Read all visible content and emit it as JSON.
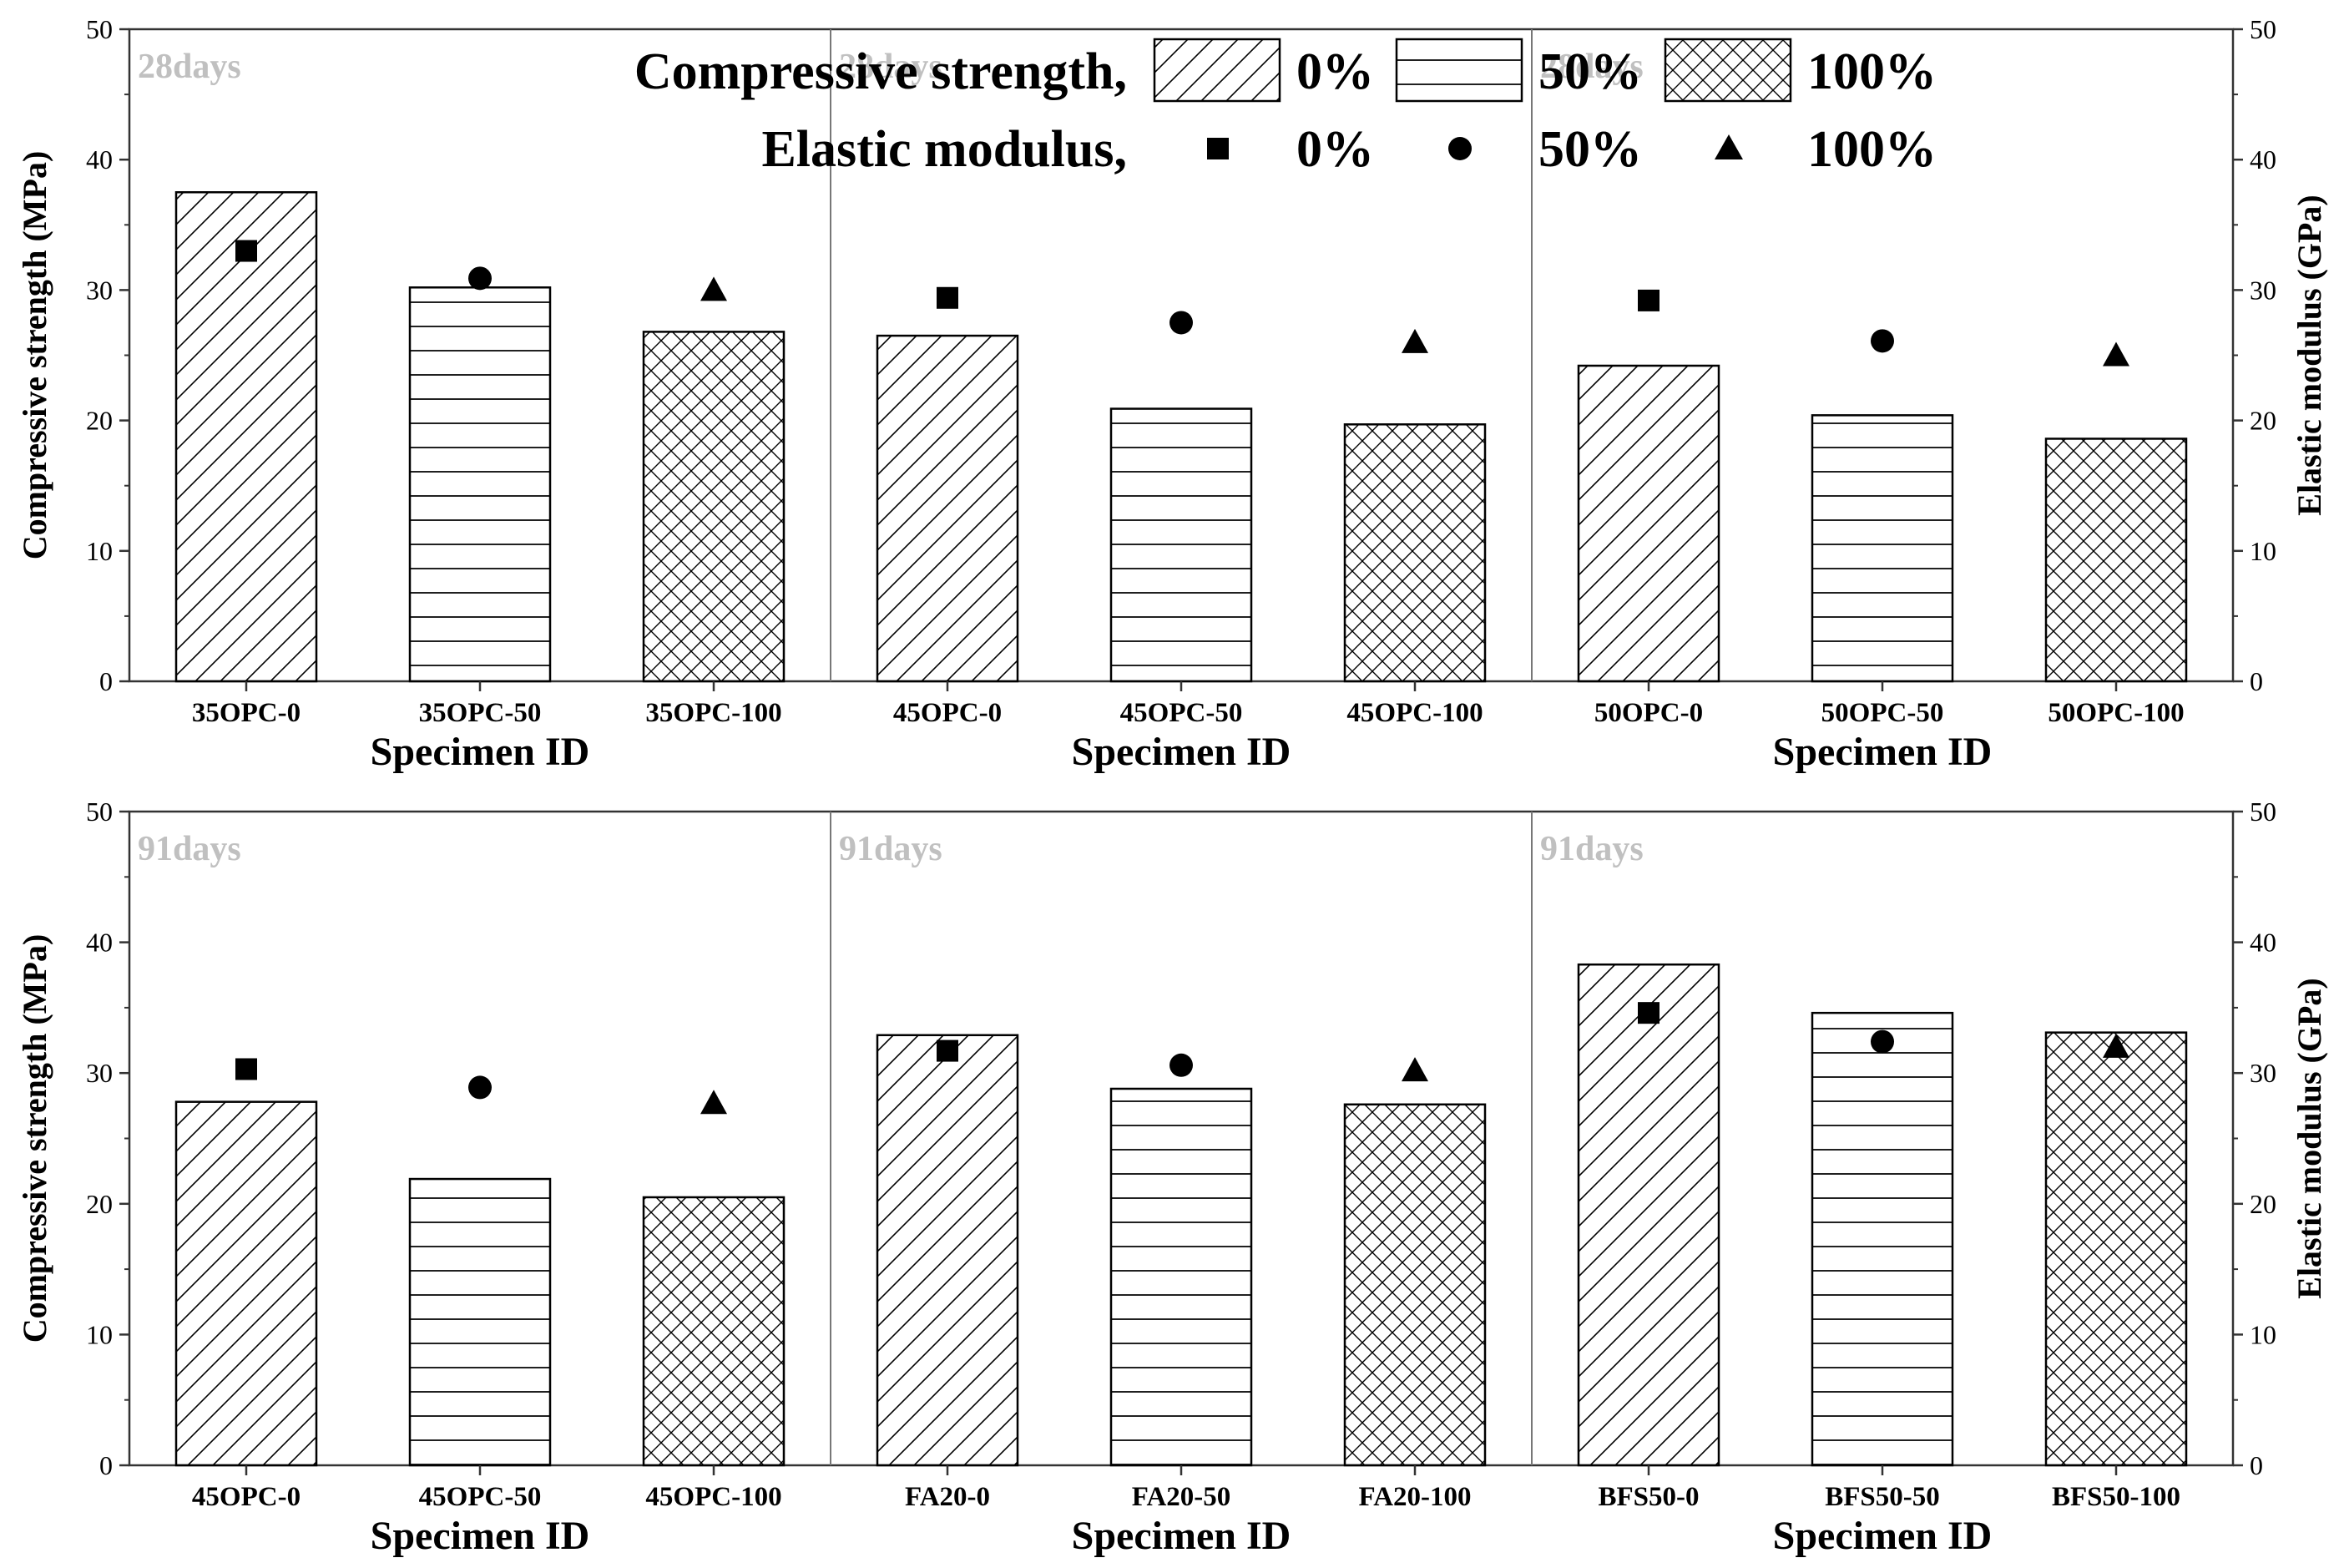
{
  "chart_data": {
    "type": "bar",
    "title": "",
    "legend": {
      "position": "top",
      "strength_label": "Compressive strength,",
      "modulus_label": "Elastic modulus,",
      "levels": [
        "0%",
        "50%",
        "100%"
      ],
      "patterns": [
        "diagonal-hatch",
        "horizontal-lines",
        "cross-hatch"
      ],
      "markers": [
        "square",
        "circle",
        "triangle"
      ]
    },
    "y_left": {
      "label": "Compressive strength (MPa)",
      "range": [
        0,
        50
      ],
      "ticks": [
        "0",
        "10",
        "20",
        "30",
        "40",
        "50"
      ]
    },
    "y_right": {
      "label": "Elastic modulus (GPa)",
      "range": [
        0,
        50
      ],
      "ticks": [
        "0",
        "10",
        "20",
        "30",
        "40",
        "50"
      ]
    },
    "xlabel": "Specimen ID",
    "panels": [
      {
        "row": "top",
        "groups": [
          {
            "tag": "28days",
            "categories": [
              "35OPC-0",
              "35OPC-50",
              "35OPC-100"
            ],
            "compressive_strength": [
              37.5,
              30.2,
              26.8
            ],
            "elastic_modulus": [
              33.0,
              30.9,
              30.0
            ]
          },
          {
            "tag": "28days",
            "categories": [
              "45OPC-0",
              "45OPC-50",
              "45OPC-100"
            ],
            "compressive_strength": [
              26.5,
              20.9,
              19.7
            ],
            "elastic_modulus": [
              29.4,
              27.5,
              26.0
            ]
          },
          {
            "tag": "28days",
            "categories": [
              "50OPC-0",
              "50OPC-50",
              "50OPC-100"
            ],
            "compressive_strength": [
              24.2,
              20.4,
              18.6
            ],
            "elastic_modulus": [
              29.2,
              26.1,
              25.0
            ]
          }
        ]
      },
      {
        "row": "bottom",
        "groups": [
          {
            "tag": "91days",
            "categories": [
              "45OPC-0",
              "45OPC-50",
              "45OPC-100"
            ],
            "compressive_strength": [
              27.8,
              21.9,
              20.5
            ],
            "elastic_modulus": [
              30.3,
              28.9,
              27.7
            ]
          },
          {
            "tag": "91days",
            "categories": [
              "FA20-0",
              "FA20-50",
              "FA20-100"
            ],
            "compressive_strength": [
              32.9,
              28.8,
              27.6
            ],
            "elastic_modulus": [
              31.7,
              30.6,
              30.2
            ]
          },
          {
            "tag": "91days",
            "categories": [
              "BFS50-0",
              "BFS50-50",
              "BFS50-100"
            ],
            "compressive_strength": [
              38.3,
              34.6,
              33.1
            ],
            "elastic_modulus": [
              34.6,
              32.4,
              32.0
            ]
          }
        ]
      }
    ]
  }
}
